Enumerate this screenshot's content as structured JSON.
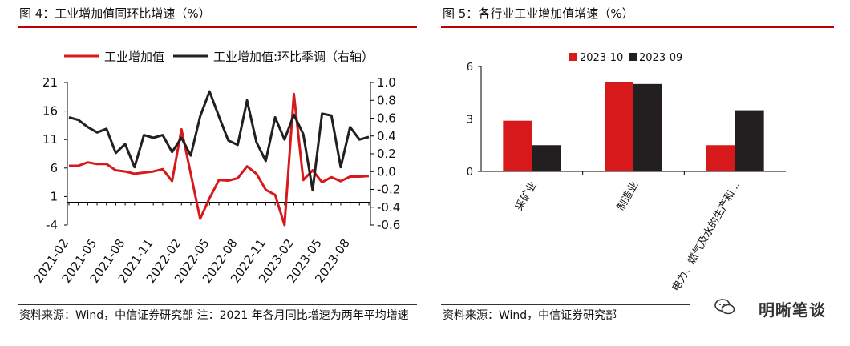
{
  "left_panel": {
    "title": "图 4：工业增加值同环比增速（%）",
    "source": "资料来源：Wind，中信证券研究部 注：2021 年各月同比增速为两年平均增速"
  },
  "right_panel": {
    "title": "图 5：各行业工业增加值增速（%）",
    "source": "资料来源：Wind，中信证券研究部"
  },
  "watermark": {
    "text": "明晰笔谈",
    "icon": "wechat-icon"
  },
  "colors": {
    "red": "#d7191c",
    "black": "#231f20",
    "rule": "#c00000"
  },
  "chart_data": [
    {
      "type": "line",
      "title": "图 4：工业增加值同环比增速（%）",
      "x": [
        "2021-02",
        "2021-03",
        "2021-04",
        "2021-05",
        "2021-06",
        "2021-07",
        "2021-08",
        "2021-09",
        "2021-10",
        "2021-11",
        "2021-12",
        "2022-01",
        "2022-02",
        "2022-03",
        "2022-04",
        "2022-05",
        "2022-06",
        "2022-07",
        "2022-08",
        "2022-09",
        "2022-10",
        "2022-11",
        "2022-12",
        "2023-01",
        "2023-02",
        "2023-03",
        "2023-04",
        "2023-05",
        "2023-06",
        "2023-07",
        "2023-08",
        "2023-09",
        "2023-10"
      ],
      "xtick_labels": [
        "2021-02",
        "2021-05",
        "2021-08",
        "2021-11",
        "2022-02",
        "2022-05",
        "2022-08",
        "2022-11",
        "2023-02",
        "2023-05",
        "2023-08"
      ],
      "series": [
        {
          "name": "工业增加值",
          "axis": "left",
          "color": "#d7191c",
          "values": [
            6.4,
            6.4,
            7.0,
            6.7,
            6.7,
            5.6,
            5.4,
            5.0,
            5.2,
            5.4,
            5.8,
            3.7,
            12.8,
            5.0,
            -2.9,
            0.7,
            3.9,
            3.8,
            4.2,
            6.3,
            5.0,
            2.2,
            1.3,
            -4.0,
            19.0,
            3.9,
            5.6,
            3.5,
            4.4,
            3.7,
            4.5,
            4.5,
            4.6
          ]
        },
        {
          "name": "工业增加值:环比季调（右轴）",
          "axis": "right",
          "color": "#231f20",
          "values": [
            0.61,
            0.58,
            0.5,
            0.44,
            0.48,
            0.21,
            0.31,
            0.05,
            0.41,
            0.38,
            0.41,
            0.22,
            0.38,
            0.18,
            0.62,
            0.9,
            0.62,
            0.35,
            0.3,
            0.8,
            0.33,
            0.12,
            0.61,
            0.36,
            0.64,
            0.42,
            -0.21,
            0.65,
            0.63,
            0.05,
            0.5,
            0.36,
            0.39
          ]
        }
      ],
      "left_axis": {
        "min": -4,
        "max": 21,
        "ticks": [
          21,
          16,
          11,
          6,
          1,
          -4
        ]
      },
      "right_axis": {
        "min": -0.6,
        "max": 1.0,
        "ticks": [
          1.0,
          0.8,
          0.6,
          0.4,
          0.2,
          0.0,
          -0.2,
          -0.4,
          -0.6
        ]
      },
      "legend": [
        "工业增加值",
        "工业增加值:环比季调（右轴）"
      ],
      "legend_position": "top"
    },
    {
      "type": "bar",
      "title": "图 5：各行业工业增加值增速（%）",
      "categories": [
        "采矿业",
        "制造业",
        "电力、燃气及水的生产和..."
      ],
      "series": [
        {
          "name": "2023-10",
          "color": "#d7191c",
          "values": [
            2.9,
            5.1,
            1.5
          ]
        },
        {
          "name": "2023-09",
          "color": "#231f20",
          "values": [
            1.5,
            5.0,
            3.5
          ]
        }
      ],
      "ylim": [
        0,
        6
      ],
      "yticks": [
        6,
        3,
        0
      ],
      "legend_position": "top"
    }
  ]
}
